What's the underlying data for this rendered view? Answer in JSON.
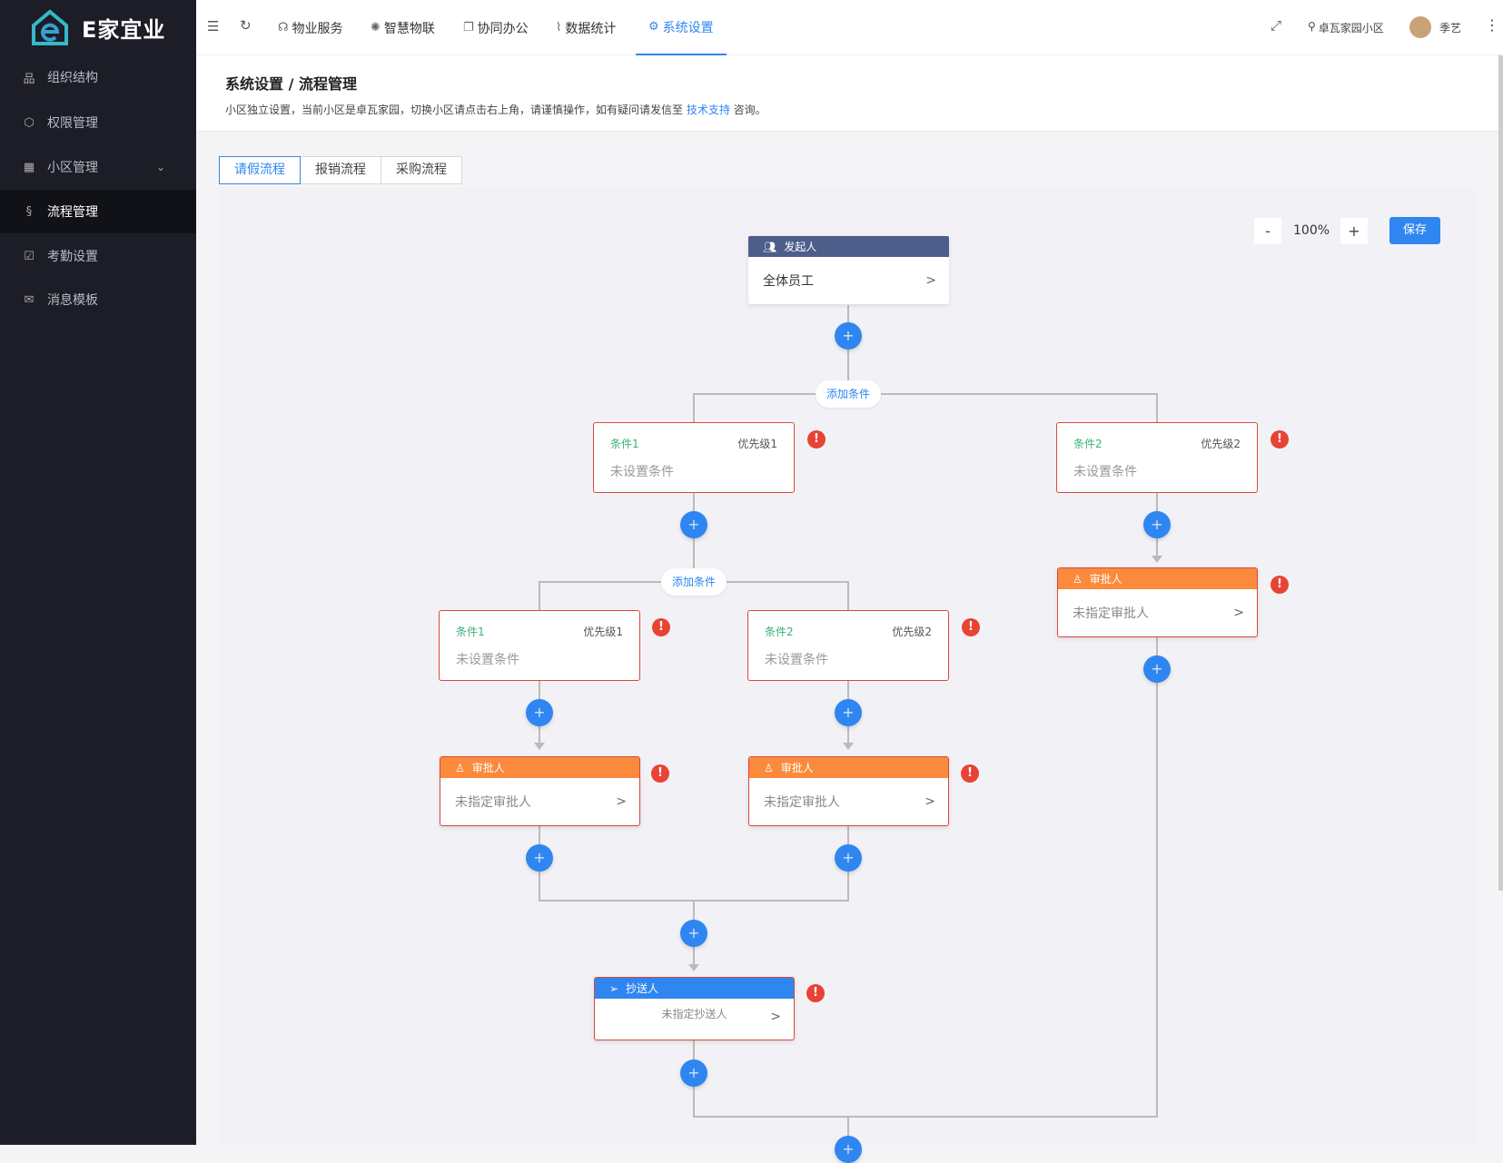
{
  "brand": {
    "name": "E家宜业"
  },
  "sidebar": {
    "items": [
      {
        "label": "组织结构",
        "icon": "org-chart-icon"
      },
      {
        "label": "权限管理",
        "icon": "key-icon"
      },
      {
        "label": "小区管理",
        "icon": "building-icon",
        "expandable": true
      },
      {
        "label": "流程管理",
        "icon": "flow-icon",
        "active": true
      },
      {
        "label": "考勤设置",
        "icon": "calendar-check-icon"
      },
      {
        "label": "消息模板",
        "icon": "mail-icon"
      }
    ]
  },
  "topnav": {
    "items": [
      {
        "label": "物业服务",
        "icon": "headset-icon"
      },
      {
        "label": "智慧物联",
        "icon": "iot-icon"
      },
      {
        "label": "协同办公",
        "icon": "copy-icon"
      },
      {
        "label": "数据统计",
        "icon": "chart-icon"
      },
      {
        "label": "系统设置",
        "icon": "gear-icon",
        "active": true
      }
    ],
    "community": "卓瓦家园小区",
    "user": "季艺"
  },
  "header": {
    "title": "系统设置 / 流程管理",
    "desc_prefix": "小区独立设置，当前小区是卓瓦家园，切换小区请点击右上角，请谨慎操作，如有疑问请发信至 ",
    "desc_link": "技术支持",
    "desc_suffix": " 咨询。"
  },
  "tabs": [
    {
      "label": "请假流程",
      "active": true
    },
    {
      "label": "报销流程"
    },
    {
      "label": "采购流程"
    }
  ],
  "toolbar": {
    "zoom_out": "-",
    "zoom": "100%",
    "zoom_in": "+",
    "save": "保存"
  },
  "flow": {
    "start": {
      "title": "发起人",
      "value": "全体员工"
    },
    "add_condition": "添加条件",
    "plus": "+",
    "error": "!",
    "gt": ">",
    "cond": {
      "c1": "条件1",
      "p1": "优先级1",
      "c2": "条件2",
      "p2": "优先级2",
      "unset": "未设置条件"
    },
    "approver": {
      "title": "审批人",
      "unset": "未指定审批人"
    },
    "cc": {
      "title": "抄送人",
      "unset": "未指定抄送人"
    }
  },
  "colors": {
    "accent": "#2f86f0",
    "start_header": "#4e5e8a",
    "approver_header": "#fb8a3c",
    "error": "#e84335",
    "condition_label": "#3bb07a",
    "sidebar_bg": "#1c1d26"
  }
}
